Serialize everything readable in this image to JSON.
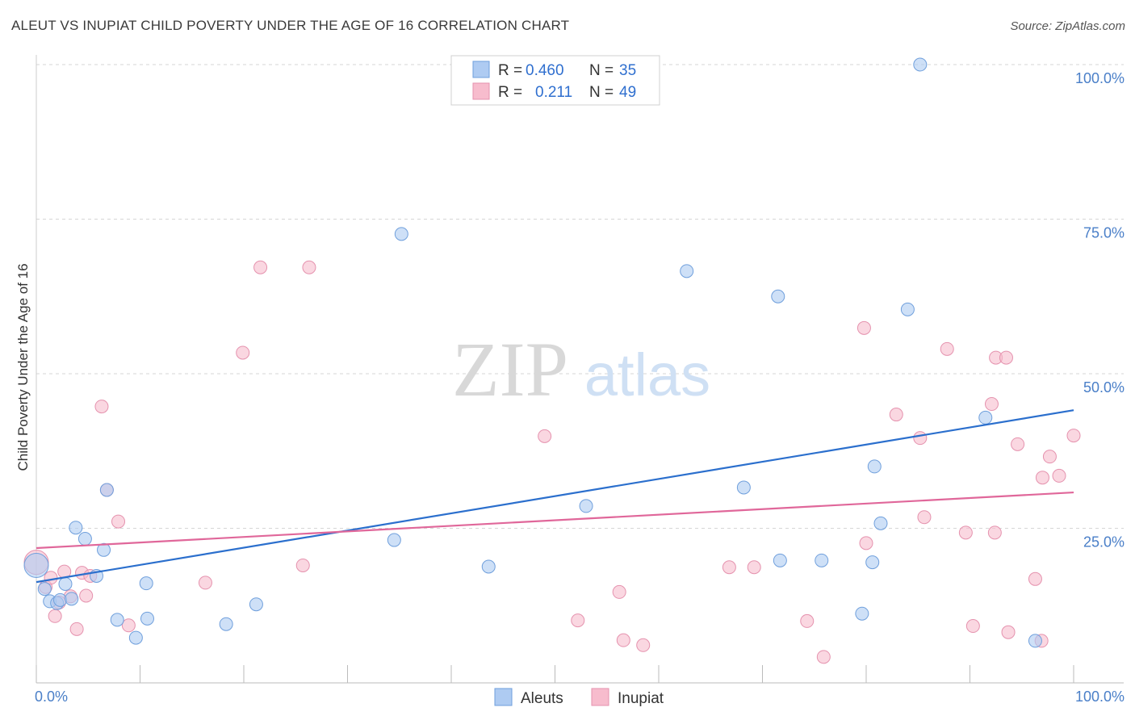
{
  "header": {
    "title": "ALEUT VS INUPIAT CHILD POVERTY UNDER THE AGE OF 16 CORRELATION CHART",
    "source": "Source: ZipAtlas.com"
  },
  "watermark": {
    "zip": "ZIP",
    "atlas": "atlas"
  },
  "colors": {
    "aleut_fill": "#aecbf2",
    "aleut_stroke": "#6f9fdc",
    "aleut_line": "#2b6fcd",
    "inupiat_fill": "#f7bccd",
    "inupiat_stroke": "#e592ae",
    "inupiat_line": "#e0679a",
    "tick_label": "#4a7fc8",
    "grid": "#d6d6d6"
  },
  "chart_data": {
    "type": "scatter",
    "title": "ALEUT VS INUPIAT CHILD POVERTY UNDER THE AGE OF 16 CORRELATION CHART",
    "xlabel": "",
    "ylabel": "Child Poverty Under the Age of 16",
    "xlim": [
      0,
      100
    ],
    "ylim": [
      0,
      100
    ],
    "x_ticks": [
      {
        "value": 0,
        "label": "0.0%"
      },
      {
        "value": 100,
        "label": "100.0%"
      }
    ],
    "y_ticks": [
      {
        "value": 25,
        "label": "25.0%"
      },
      {
        "value": 50,
        "label": "50.0%"
      },
      {
        "value": 75,
        "label": "75.0%"
      },
      {
        "value": 100,
        "label": "100.0%"
      }
    ],
    "grid": true,
    "legend_position": "bottom-center",
    "legend": [
      {
        "label": "Aleuts"
      },
      {
        "label": "Inupiat"
      }
    ],
    "stats": [
      {
        "r_label": "R =",
        "r": "0.460",
        "n_label": "N =",
        "n": "35"
      },
      {
        "r_label": "R =",
        "r": "0.211",
        "n_label": "N =",
        "n": "49"
      }
    ],
    "series": [
      {
        "name": "Aleuts",
        "trend": {
          "x": [
            0,
            100
          ],
          "y": [
            16.3,
            44.1
          ]
        },
        "points": [
          {
            "x": 0.0,
            "y": 19.0,
            "big": true
          },
          {
            "x": 0.8,
            "y": 15.2
          },
          {
            "x": 1.3,
            "y": 13.2
          },
          {
            "x": 2.0,
            "y": 12.9
          },
          {
            "x": 2.3,
            "y": 13.4
          },
          {
            "x": 2.8,
            "y": 16.0
          },
          {
            "x": 3.4,
            "y": 13.6
          },
          {
            "x": 3.8,
            "y": 25.1
          },
          {
            "x": 4.7,
            "y": 23.3
          },
          {
            "x": 5.8,
            "y": 17.3
          },
          {
            "x": 6.5,
            "y": 21.5
          },
          {
            "x": 6.8,
            "y": 31.2
          },
          {
            "x": 7.8,
            "y": 10.2
          },
          {
            "x": 9.6,
            "y": 7.3
          },
          {
            "x": 10.6,
            "y": 16.1
          },
          {
            "x": 10.7,
            "y": 10.4
          },
          {
            "x": 18.3,
            "y": 9.5
          },
          {
            "x": 21.2,
            "y": 12.7
          },
          {
            "x": 34.5,
            "y": 23.1
          },
          {
            "x": 35.2,
            "y": 72.6
          },
          {
            "x": 43.6,
            "y": 18.8
          },
          {
            "x": 53.0,
            "y": 28.6
          },
          {
            "x": 62.7,
            "y": 66.6
          },
          {
            "x": 68.2,
            "y": 31.6
          },
          {
            "x": 71.5,
            "y": 62.5
          },
          {
            "x": 71.7,
            "y": 19.8
          },
          {
            "x": 75.7,
            "y": 19.8
          },
          {
            "x": 79.6,
            "y": 11.2
          },
          {
            "x": 80.6,
            "y": 19.5
          },
          {
            "x": 80.8,
            "y": 35.0
          },
          {
            "x": 81.4,
            "y": 25.8
          },
          {
            "x": 84.0,
            "y": 60.4
          },
          {
            "x": 85.2,
            "y": 100.0
          },
          {
            "x": 91.5,
            "y": 42.9
          },
          {
            "x": 96.3,
            "y": 6.8
          }
        ]
      },
      {
        "name": "Inupiat",
        "trend": {
          "x": [
            0,
            100
          ],
          "y": [
            21.8,
            30.8
          ]
        },
        "points": [
          {
            "x": 0.0,
            "y": 19.5,
            "big": true
          },
          {
            "x": 0.9,
            "y": 15.5
          },
          {
            "x": 1.4,
            "y": 17.0
          },
          {
            "x": 1.8,
            "y": 10.8
          },
          {
            "x": 2.2,
            "y": 13.0
          },
          {
            "x": 2.7,
            "y": 18.0
          },
          {
            "x": 3.3,
            "y": 14.0
          },
          {
            "x": 3.9,
            "y": 8.7
          },
          {
            "x": 4.4,
            "y": 17.8
          },
          {
            "x": 4.8,
            "y": 14.1
          },
          {
            "x": 5.2,
            "y": 17.3
          },
          {
            "x": 6.3,
            "y": 44.7
          },
          {
            "x": 6.8,
            "y": 31.2
          },
          {
            "x": 7.9,
            "y": 26.1
          },
          {
            "x": 8.9,
            "y": 9.3
          },
          {
            "x": 16.3,
            "y": 16.2
          },
          {
            "x": 19.9,
            "y": 53.4
          },
          {
            "x": 21.6,
            "y": 67.2
          },
          {
            "x": 25.7,
            "y": 19.0
          },
          {
            "x": 26.3,
            "y": 67.2
          },
          {
            "x": 49.0,
            "y": 39.9
          },
          {
            "x": 52.2,
            "y": 10.1
          },
          {
            "x": 56.2,
            "y": 14.7
          },
          {
            "x": 56.6,
            "y": 6.9
          },
          {
            "x": 58.5,
            "y": 6.1
          },
          {
            "x": 66.8,
            "y": 18.7
          },
          {
            "x": 69.2,
            "y": 18.7
          },
          {
            "x": 74.3,
            "y": 10.0
          },
          {
            "x": 75.9,
            "y": 4.2
          },
          {
            "x": 79.8,
            "y": 57.4
          },
          {
            "x": 80.0,
            "y": 22.6
          },
          {
            "x": 82.9,
            "y": 43.4
          },
          {
            "x": 85.2,
            "y": 39.6
          },
          {
            "x": 85.6,
            "y": 26.8
          },
          {
            "x": 87.8,
            "y": 54.0
          },
          {
            "x": 89.6,
            "y": 24.3
          },
          {
            "x": 90.3,
            "y": 9.2
          },
          {
            "x": 92.1,
            "y": 45.1
          },
          {
            "x": 92.4,
            "y": 24.3
          },
          {
            "x": 92.5,
            "y": 52.6
          },
          {
            "x": 93.5,
            "y": 52.6
          },
          {
            "x": 93.7,
            "y": 8.2
          },
          {
            "x": 94.6,
            "y": 38.6
          },
          {
            "x": 96.3,
            "y": 16.8
          },
          {
            "x": 96.9,
            "y": 6.8
          },
          {
            "x": 97.0,
            "y": 33.2
          },
          {
            "x": 97.7,
            "y": 36.6
          },
          {
            "x": 98.6,
            "y": 33.5
          },
          {
            "x": 100.0,
            "y": 40.0
          }
        ]
      }
    ]
  }
}
